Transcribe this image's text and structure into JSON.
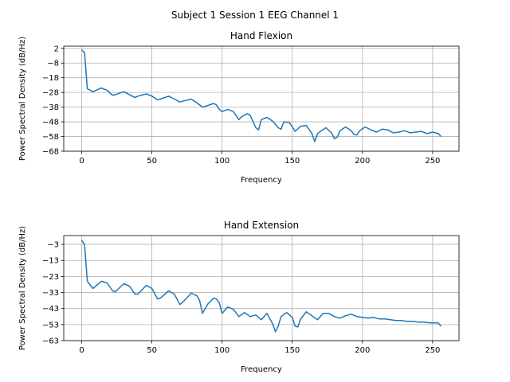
{
  "figure": {
    "suptitle": "Subject 1 Session 1 EEG Channel 1"
  },
  "chart_data": [
    {
      "type": "line",
      "title": "Hand Flexion",
      "xlabel": "Frequency",
      "ylabel": "Power Spectral Density (dB/Hz)",
      "xlim": [
        -12.8,
        268.8
      ],
      "ylim": [
        -68,
        3.5
      ],
      "xticks": [
        0,
        50,
        100,
        150,
        200,
        250
      ],
      "yticks": [
        2,
        -8,
        -18,
        -28,
        -38,
        -48,
        -58,
        -68
      ],
      "grid": true,
      "color": "#1f77b4",
      "series": [
        {
          "x": [
            0,
            2,
            4,
            8,
            14,
            18,
            22,
            24,
            30,
            34,
            38,
            40,
            46,
            50,
            54,
            56,
            62,
            66,
            70,
            72,
            78,
            82,
            86,
            88,
            94,
            96,
            98,
            100,
            104,
            108,
            112,
            114,
            118,
            120,
            124,
            126,
            128,
            132,
            136,
            140,
            142,
            144,
            148,
            150,
            152,
            156,
            160,
            164,
            166,
            168,
            170,
            174,
            178,
            180,
            182,
            184,
            188,
            192,
            194,
            196,
            198,
            202,
            206,
            210,
            214,
            218,
            222,
            226,
            230,
            234,
            238,
            242,
            246,
            250,
            254,
            256
          ],
          "values": [
            1,
            -1,
            -25.5,
            -27.5,
            -25,
            -26.5,
            -30,
            -29.5,
            -27.5,
            -29.5,
            -31.5,
            -30.5,
            -29,
            -30.5,
            -33,
            -32.5,
            -30.5,
            -32.5,
            -34.5,
            -34,
            -32.5,
            -35,
            -38,
            -37.5,
            -35.5,
            -36.5,
            -39.5,
            -41,
            -39.5,
            -41,
            -46.5,
            -44.5,
            -42.5,
            -43.5,
            -52,
            -53.5,
            -46.5,
            -45,
            -47.5,
            -52,
            -53,
            -48,
            -48.5,
            -51.5,
            -54.5,
            -51,
            -50.5,
            -56,
            -61.5,
            -56,
            -54.5,
            -52,
            -55.5,
            -59.5,
            -58.5,
            -54,
            -51.5,
            -54,
            -56.5,
            -57,
            -54,
            -51.5,
            -53.5,
            -55,
            -53,
            -53.5,
            -55.5,
            -55,
            -54,
            -55.5,
            -55,
            -54.5,
            -56,
            -55,
            -56,
            -58
          ]
        }
      ]
    },
    {
      "type": "line",
      "title": "Hand Extension",
      "xlabel": "Frequency",
      "ylabel": "Power Spectral Density (dB/Hz)",
      "xlim": [
        -12.8,
        268.8
      ],
      "ylim": [
        -63,
        2.5
      ],
      "xticks": [
        0,
        50,
        100,
        150,
        200,
        250
      ],
      "yticks": [
        -3,
        -13,
        -23,
        -33,
        -43,
        -53,
        -63
      ],
      "grid": true,
      "color": "#1f77b4",
      "series": [
        {
          "x": [
            0,
            2,
            4,
            8,
            14,
            18,
            22,
            24,
            30,
            34,
            38,
            40,
            46,
            50,
            54,
            56,
            62,
            66,
            70,
            72,
            78,
            82,
            84,
            86,
            90,
            94,
            96,
            98,
            100,
            104,
            108,
            112,
            116,
            120,
            124,
            128,
            132,
            136,
            138,
            140,
            142,
            146,
            150,
            152,
            154,
            156,
            160,
            164,
            168,
            172,
            176,
            180,
            184,
            188,
            192,
            196,
            200,
            204,
            208,
            212,
            216,
            220,
            224,
            228,
            232,
            236,
            240,
            244,
            248,
            252,
            254,
            256
          ],
          "values": [
            -0.5,
            -3,
            -26,
            -30.5,
            -26,
            -27,
            -32,
            -32.5,
            -27.5,
            -29,
            -34,
            -34,
            -28.5,
            -30.5,
            -37,
            -36.5,
            -32,
            -34,
            -40.5,
            -39,
            -33.5,
            -35,
            -38,
            -46,
            -40,
            -36.5,
            -37,
            -39.5,
            -46,
            -42,
            -43.5,
            -48,
            -45.5,
            -48,
            -47,
            -50,
            -46,
            -52.5,
            -57.5,
            -54,
            -48,
            -45.5,
            -48.5,
            -54,
            -54.5,
            -49.5,
            -45,
            -47.5,
            -50,
            -46,
            -46,
            -48,
            -49,
            -47.5,
            -46.5,
            -48,
            -48.5,
            -49,
            -48.5,
            -49.5,
            -49.5,
            -50,
            -50.5,
            -50.5,
            -51,
            -51,
            -51.5,
            -51.5,
            -52,
            -52,
            -52,
            -54
          ]
        }
      ]
    }
  ]
}
